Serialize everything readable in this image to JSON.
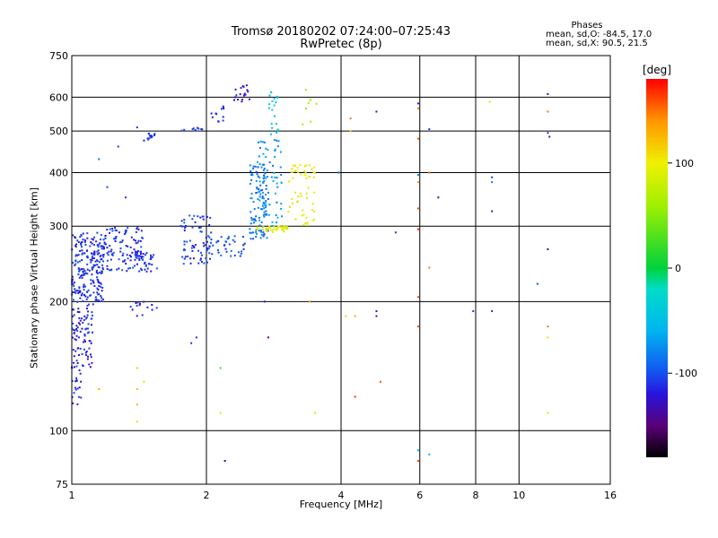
{
  "header": {
    "title_line1": "Tromsø 20180202 07:24:00–07:25:43",
    "title_line2": "RwPretec (8p)",
    "phase_title": "Phases",
    "phase_O": "mean, sd,O: -84.5, 17.0",
    "phase_X": "mean, sd,X:  90.5, 21.5"
  },
  "colorbar": {
    "label": "[deg]",
    "ticks": [
      {
        "value": 100,
        "label": "100"
      },
      {
        "value": 0,
        "label": "0"
      },
      {
        "value": -100,
        "label": "-100"
      }
    ]
  },
  "chart_data": {
    "type": "scatter",
    "title": "Tromsø 20180202 07:24:00–07:25:43",
    "subtitle": "RwPretec (8p)",
    "xlabel": "Frequency [MHz]",
    "ylabel": "Stationary phase Virtual Height [km]",
    "x_scale": "log",
    "y_scale": "log",
    "xlim": [
      1,
      16
    ],
    "ylim": [
      75,
      750
    ],
    "x_ticks": [
      1,
      2,
      4,
      6,
      8,
      10,
      16
    ],
    "y_ticks": [
      75,
      100,
      200,
      300,
      400,
      500,
      600,
      750
    ],
    "x_tick_labels": [
      "1",
      "2",
      "4",
      "6",
      "8",
      "10",
      "16"
    ],
    "y_tick_labels": [
      "75",
      "100",
      "200",
      "300",
      "400",
      "500",
      "600",
      "750"
    ],
    "x_grid": [
      2,
      4,
      6,
      8,
      10
    ],
    "y_grid": [
      100,
      200,
      300,
      400,
      500,
      600
    ],
    "colorscale": {
      "label": "[deg]",
      "range": [
        -180,
        180
      ],
      "ticks": [
        -100,
        0,
        100
      ]
    },
    "clusters": [
      {
        "x": [
          1.0,
          1.18
        ],
        "y": [
          200,
          290
        ],
        "phase": -110,
        "n": 220
      },
      {
        "x": [
          1.0,
          1.12
        ],
        "y": [
          140,
          200
        ],
        "phase": -115,
        "n": 90
      },
      {
        "x": [
          1.0,
          1.05
        ],
        "y": [
          115,
          140
        ],
        "phase": -115,
        "n": 18
      },
      {
        "x": [
          1.18,
          1.45
        ],
        "y": [
          235,
          300
        ],
        "phase": -110,
        "n": 110
      },
      {
        "x": [
          1.4,
          1.55
        ],
        "y": [
          235,
          260
        ],
        "phase": -112,
        "n": 30
      },
      {
        "x": [
          1.35,
          1.55
        ],
        "y": [
          185,
          200
        ],
        "phase": -112,
        "n": 14
      },
      {
        "x": [
          1.45,
          1.55
        ],
        "y": [
          475,
          495
        ],
        "phase": -110,
        "n": 14
      },
      {
        "x": [
          1.75,
          2.05
        ],
        "y": [
          245,
          320
        ],
        "phase": -105,
        "n": 70
      },
      {
        "x": [
          2.0,
          2.45
        ],
        "y": [
          255,
          285
        ],
        "phase": -100,
        "n": 40
      },
      {
        "x": [
          1.75,
          2.0
        ],
        "y": [
          500,
          510
        ],
        "phase": -110,
        "n": 10
      },
      {
        "x": [
          2.05,
          2.2
        ],
        "y": [
          525,
          575
        ],
        "phase": -115,
        "n": 12
      },
      {
        "x": [
          2.3,
          2.5
        ],
        "y": [
          580,
          640
        ],
        "phase": -120,
        "n": 18
      },
      {
        "x": [
          2.5,
          2.75
        ],
        "y": [
          280,
          420
        ],
        "phase": -85,
        "n": 110
      },
      {
        "x": [
          2.6,
          2.95
        ],
        "y": [
          300,
          480
        ],
        "phase": -75,
        "n": 60
      },
      {
        "x": [
          2.75,
          2.9
        ],
        "y": [
          480,
          620
        ],
        "phase": -40,
        "n": 20
      },
      {
        "x": [
          2.55,
          3.05
        ],
        "y": [
          290,
          300
        ],
        "phase": 95,
        "n": 40
      },
      {
        "x": [
          3.05,
          3.5
        ],
        "y": [
          300,
          420
        ],
        "phase": 100,
        "n": 55
      },
      {
        "x": [
          3.2,
          3.55
        ],
        "y": [
          500,
          640
        ],
        "phase": 60,
        "n": 8
      }
    ],
    "points": [
      {
        "x": 1.27,
        "y": 460,
        "phase": -110
      },
      {
        "x": 1.32,
        "y": 350,
        "phase": -110
      },
      {
        "x": 1.15,
        "y": 430,
        "phase": -90
      },
      {
        "x": 1.2,
        "y": 370,
        "phase": -105
      },
      {
        "x": 1.4,
        "y": 510,
        "phase": -110
      },
      {
        "x": 1.9,
        "y": 165,
        "phase": -110
      },
      {
        "x": 1.85,
        "y": 160,
        "phase": -110
      },
      {
        "x": 1.4,
        "y": 140,
        "phase": 60
      },
      {
        "x": 1.4,
        "y": 125,
        "phase": 120
      },
      {
        "x": 1.4,
        "y": 115,
        "phase": 130
      },
      {
        "x": 1.4,
        "y": 105,
        "phase": 110
      },
      {
        "x": 1.45,
        "y": 130,
        "phase": 80
      },
      {
        "x": 1.15,
        "y": 125,
        "phase": 130
      },
      {
        "x": 2.15,
        "y": 140,
        "phase": 20
      },
      {
        "x": 2.15,
        "y": 110,
        "phase": 110
      },
      {
        "x": 2.2,
        "y": 85,
        "phase": -140
      },
      {
        "x": 2.7,
        "y": 200,
        "phase": -120
      },
      {
        "x": 2.75,
        "y": 165,
        "phase": -150
      },
      {
        "x": 3.4,
        "y": 200,
        "phase": 140
      },
      {
        "x": 3.5,
        "y": 110,
        "phase": 110
      },
      {
        "x": 3.95,
        "y": 400,
        "phase": -90
      },
      {
        "x": 4.2,
        "y": 535,
        "phase": 150
      },
      {
        "x": 4.2,
        "y": 500,
        "phase": 120
      },
      {
        "x": 4.1,
        "y": 185,
        "phase": 110
      },
      {
        "x": 4.3,
        "y": 185,
        "phase": 130
      },
      {
        "x": 4.3,
        "y": 120,
        "phase": 170
      },
      {
        "x": 4.8,
        "y": 555,
        "phase": -130
      },
      {
        "x": 4.8,
        "y": 190,
        "phase": -130
      },
      {
        "x": 4.8,
        "y": 185,
        "phase": -140
      },
      {
        "x": 4.9,
        "y": 130,
        "phase": 160
      },
      {
        "x": 5.3,
        "y": 290,
        "phase": -110
      },
      {
        "x": 5.95,
        "y": 580,
        "phase": -120
      },
      {
        "x": 5.95,
        "y": 565,
        "phase": 150
      },
      {
        "x": 5.95,
        "y": 480,
        "phase": 160
      },
      {
        "x": 5.95,
        "y": 395,
        "phase": -80
      },
      {
        "x": 5.95,
        "y": 380,
        "phase": 140
      },
      {
        "x": 5.95,
        "y": 330,
        "phase": 160
      },
      {
        "x": 5.95,
        "y": 295,
        "phase": 170
      },
      {
        "x": 5.95,
        "y": 205,
        "phase": 160
      },
      {
        "x": 5.95,
        "y": 175,
        "phase": 160
      },
      {
        "x": 5.95,
        "y": 90,
        "phase": -60
      },
      {
        "x": 5.95,
        "y": 85,
        "phase": 160
      },
      {
        "x": 6.3,
        "y": 505,
        "phase": -110
      },
      {
        "x": 6.3,
        "y": 400,
        "phase": 150
      },
      {
        "x": 6.3,
        "y": 240,
        "phase": 150
      },
      {
        "x": 6.3,
        "y": 88,
        "phase": -60
      },
      {
        "x": 6.6,
        "y": 350,
        "phase": -140
      },
      {
        "x": 7.9,
        "y": 190,
        "phase": -110
      },
      {
        "x": 8.6,
        "y": 585,
        "phase": 110
      },
      {
        "x": 8.7,
        "y": 390,
        "phase": -110
      },
      {
        "x": 8.7,
        "y": 380,
        "phase": -80
      },
      {
        "x": 8.7,
        "y": 325,
        "phase": -120
      },
      {
        "x": 8.7,
        "y": 190,
        "phase": -110
      },
      {
        "x": 11.0,
        "y": 220,
        "phase": -100
      },
      {
        "x": 11.6,
        "y": 610,
        "phase": -140
      },
      {
        "x": 11.6,
        "y": 555,
        "phase": 150
      },
      {
        "x": 11.6,
        "y": 495,
        "phase": -110
      },
      {
        "x": 11.7,
        "y": 485,
        "phase": -130
      },
      {
        "x": 11.6,
        "y": 265,
        "phase": -130
      },
      {
        "x": 11.6,
        "y": 175,
        "phase": 150
      },
      {
        "x": 11.6,
        "y": 165,
        "phase": 110
      },
      {
        "x": 11.6,
        "y": 110,
        "phase": 110
      }
    ]
  }
}
